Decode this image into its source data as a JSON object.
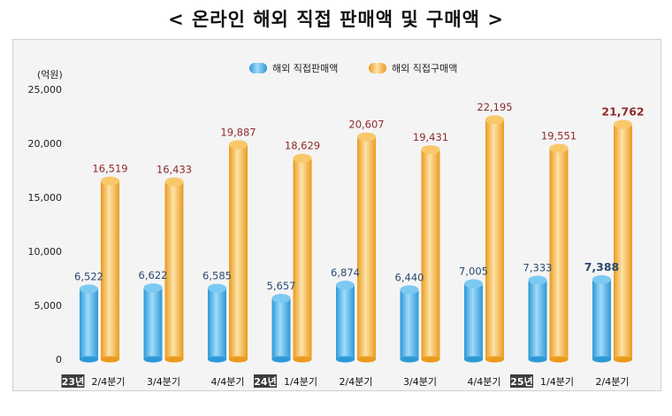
{
  "title": "< 온라인 해외 직접 판매액 및 구매액 >",
  "chart_data": {
    "type": "bar",
    "unit_label": "(억원)",
    "ylim": [
      0,
      25000
    ],
    "yticks": [
      "0",
      "5,000",
      "10,000",
      "15,000",
      "20,000",
      "25,000"
    ],
    "categories": [
      {
        "year": "23년",
        "label": "2/4분기"
      },
      {
        "year": "",
        "label": "3/4분기"
      },
      {
        "year": "",
        "label": "4/4분기"
      },
      {
        "year": "24년",
        "label": "1/4분기"
      },
      {
        "year": "",
        "label": "2/4분기"
      },
      {
        "year": "",
        "label": "3/4분기"
      },
      {
        "year": "",
        "label": "4/4분기"
      },
      {
        "year": "25년",
        "label": "1/4분기"
      },
      {
        "year": "",
        "label": "2/4분기"
      }
    ],
    "series": [
      {
        "name": "해외 직접판매액",
        "color": "#4fb3e8",
        "values": [
          6522,
          6622,
          6585,
          5657,
          6874,
          6440,
          7005,
          7333,
          7388
        ],
        "labels": [
          "6,522",
          "6,622",
          "6,585",
          "5,657",
          "6,874",
          "6,440",
          "7,005",
          "7,333",
          "7,388"
        ]
      },
      {
        "name": "해외 직접구매액",
        "color": "#f5a623",
        "values": [
          16519,
          16433,
          19887,
          18629,
          20607,
          19431,
          22195,
          19551,
          21762
        ],
        "labels": [
          "16,519",
          "16,433",
          "19,887",
          "18,629",
          "20,607",
          "19,431",
          "22,195",
          "19,551",
          "21,762"
        ]
      }
    ],
    "highlight_last": true,
    "legend_position": "top"
  }
}
